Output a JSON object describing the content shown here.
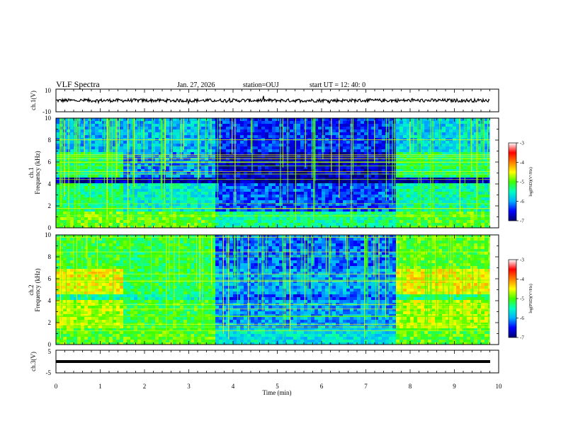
{
  "header": {
    "title": "VLF Spectra",
    "date": "Jan. 27, 2026",
    "station": "station=OUJ",
    "start": "start UT =  12: 40: 0"
  },
  "axes": {
    "xlabel": "Time (min)",
    "xticks": [
      "0",
      "1",
      "2",
      "3",
      "4",
      "5",
      "6",
      "7",
      "8",
      "9",
      "10"
    ],
    "ch1_label": "ch.1(V)",
    "ch1_ticks": [
      "10",
      "-10"
    ],
    "spec1_label_a": "ch.1",
    "spec1_label_b": "Frequency (kHz)",
    "spec2_label_a": "ch.2",
    "spec2_label_b": "Frequency (kHz)",
    "freq_ticks": [
      "0",
      "2",
      "4",
      "6",
      "8",
      "10"
    ],
    "ch3_label": "ch.3(V)",
    "ch3_ticks": [
      "5",
      "-5"
    ]
  },
  "colorbar": {
    "label": "log(PSD)(V²/Hz)",
    "ticks": [
      "-3",
      "-4",
      "-5",
      "-6",
      "-7"
    ],
    "range": [
      -7,
      -3
    ],
    "colors": [
      "#000070",
      "#0000ff",
      "#00b0ff",
      "#00ffc0",
      "#40ff00",
      "#ffff00",
      "#ff8000",
      "#ff0000",
      "#ffffff"
    ]
  },
  "chart_data": [
    {
      "type": "line",
      "name": "ch.1",
      "xlabel": "Time (min)",
      "ylabel": "ch.1(V)",
      "xlim": [
        0,
        10
      ],
      "ylim": [
        -10,
        10
      ],
      "description_values": {
        "mean_level": 0,
        "amplitude": 1.5,
        "x_end": 9.8
      }
    },
    {
      "type": "heatmap",
      "name": "ch.1",
      "xlabel": "Time (min)",
      "ylabel": "Frequency (kHz)",
      "xlim": [
        0,
        10
      ],
      "ylim": [
        0,
        10
      ],
      "x_data_end": 9.8,
      "segments_min": [
        [
          0,
          1.5
        ],
        [
          1.5,
          3.6
        ],
        [
          3.6,
          7.65
        ],
        [
          7.65,
          9.8
        ]
      ],
      "segment_levels_logpsd": {
        "band_0_1.5kHz": [
          -4.9,
          -5.0,
          -5.4,
          -5.0
        ],
        "band_2_4kHz": [
          -5.3,
          -5.6,
          -6.3,
          -5.4
        ],
        "band_4_4.5kHz": [
          -6.8,
          -6.8,
          -6.9,
          -6.8
        ],
        "band_5_7kHz": [
          -5.3,
          -6.1,
          -6.7,
          -5.3
        ],
        "band_7_10kHz": [
          -5.9,
          -5.9,
          -6.4,
          -5.8
        ]
      }
    },
    {
      "type": "heatmap",
      "name": "ch.2",
      "xlabel": "Time (min)",
      "ylabel": "Frequency (kHz)",
      "xlim": [
        0,
        10
      ],
      "ylim": [
        0,
        10
      ],
      "x_data_end": 9.8,
      "segments_min": [
        [
          0,
          1.5
        ],
        [
          1.5,
          3.6
        ],
        [
          3.6,
          7.65
        ],
        [
          7.65,
          9.8
        ]
      ],
      "segment_levels_logpsd": {
        "band_0_1.5kHz": [
          -5.0,
          -5.0,
          -5.7,
          -5.0
        ],
        "band_2_4kHz": [
          -4.7,
          -5.1,
          -6.0,
          -4.7
        ],
        "band_4_4.5kHz": [
          -5.4,
          -5.5,
          -6.3,
          -5.3
        ],
        "band_5_7kHz": [
          -4.5,
          -5.2,
          -6.0,
          -4.5
        ],
        "band_7_10kHz": [
          -5.1,
          -5.2,
          -6.2,
          -5.0
        ]
      }
    },
    {
      "type": "line",
      "name": "ch.3",
      "xlabel": "Time (min)",
      "ylabel": "ch.3(V)",
      "xlim": [
        0,
        10
      ],
      "ylim": [
        -5,
        5
      ],
      "description_values": {
        "level": -1.2,
        "x_end": 9.8
      }
    }
  ]
}
